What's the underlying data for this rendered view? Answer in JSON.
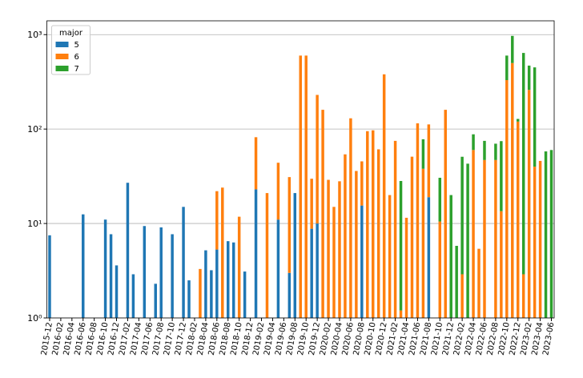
{
  "chart_data": {
    "type": "bar",
    "stacked": true,
    "log_y": true,
    "grid": true,
    "legend_loc": "upper left",
    "legend_title": "major",
    "categories": [
      "2015-12",
      null,
      "2016-02",
      null,
      "2016-04",
      null,
      "2016-06",
      null,
      "2016-08",
      null,
      "2016-10",
      null,
      "2016-12",
      null,
      "2017-02",
      null,
      "2017-04",
      null,
      "2017-06",
      null,
      "2017-08",
      null,
      "2017-10",
      null,
      "2017-12",
      null,
      "2018-02",
      null,
      "2018-04",
      null,
      "2018-06",
      null,
      "2018-08",
      null,
      "2018-10",
      null,
      "2018-12",
      null,
      "2019-02",
      null,
      "2019-04",
      null,
      "2019-06",
      null,
      "2019-08",
      null,
      "2019-10",
      null,
      "2019-12",
      null,
      "2020-02",
      null,
      "2020-04",
      null,
      "2020-06",
      null,
      "2020-08",
      null,
      "2020-10",
      null,
      "2020-12",
      null,
      "2021-02",
      null,
      "2021-04",
      null,
      "2021-06",
      null,
      "2021-08",
      null,
      "2021-10",
      null,
      "2021-12",
      null,
      "2022-02",
      null,
      "2022-04",
      null,
      "2022-06",
      null,
      "2022-08",
      null,
      "2022-10",
      null,
      "2022-12",
      null,
      "2023-02",
      null,
      "2023-04",
      null,
      "2023-06"
    ],
    "series": [
      {
        "name": "5",
        "color": "#1f77b4",
        "values": [
          7.5,
          null,
          null,
          null,
          null,
          null,
          12.5,
          null,
          null,
          null,
          11,
          7.7,
          3.6,
          null,
          27,
          2.9,
          null,
          9.4,
          null,
          2.3,
          9.1,
          null,
          7.7,
          null,
          15,
          2.5,
          null,
          null,
          5.2,
          3.2,
          5.3,
          null,
          6.5,
          6.3,
          null,
          3.1,
          null,
          23,
          null,
          null,
          null,
          11,
          null,
          3,
          21,
          null,
          null,
          8.8,
          10,
          null,
          null,
          null,
          null,
          null,
          null,
          null,
          15.5,
          null,
          null,
          null,
          null,
          null,
          null,
          null,
          null,
          null,
          null,
          null,
          19,
          null,
          null,
          null,
          null,
          null,
          null,
          null,
          null,
          null,
          null,
          null,
          null,
          null,
          null,
          null,
          null,
          null,
          null,
          null,
          null,
          null,
          null
        ]
      },
      {
        "name": "6",
        "color": "#ff7f0e",
        "values": [
          null,
          null,
          null,
          null,
          null,
          null,
          null,
          null,
          null,
          null,
          null,
          null,
          null,
          null,
          null,
          null,
          null,
          null,
          null,
          null,
          null,
          null,
          null,
          null,
          null,
          null,
          null,
          3.3,
          null,
          null,
          16.7,
          24,
          null,
          null,
          11.8,
          null,
          null,
          59,
          null,
          21,
          null,
          33,
          null,
          28,
          null,
          600,
          600,
          21,
          220,
          160,
          29,
          15,
          28,
          54,
          130,
          36,
          30,
          95,
          97,
          61,
          380,
          20,
          75,
          1.2,
          11.5,
          51,
          115,
          38,
          93,
          null,
          10.5,
          160,
          null,
          null,
          2.9,
          null,
          60,
          5.4,
          47,
          null,
          47,
          13.5,
          330,
          500,
          120,
          2.9,
          260,
          40,
          46,
          null,
          null
        ]
      },
      {
        "name": "7",
        "color": "#2ca02c",
        "values": [
          null,
          null,
          null,
          null,
          null,
          null,
          null,
          null,
          null,
          null,
          null,
          null,
          null,
          null,
          null,
          null,
          null,
          null,
          null,
          null,
          null,
          null,
          null,
          null,
          null,
          null,
          null,
          null,
          null,
          null,
          null,
          null,
          null,
          null,
          null,
          null,
          null,
          null,
          null,
          null,
          null,
          null,
          null,
          null,
          null,
          null,
          null,
          null,
          null,
          null,
          null,
          null,
          null,
          null,
          null,
          null,
          null,
          null,
          null,
          null,
          null,
          null,
          null,
          27,
          null,
          null,
          null,
          40,
          null,
          null,
          20,
          null,
          20,
          5.8,
          48,
          43,
          28,
          null,
          28,
          null,
          23,
          61,
          270,
          470,
          8,
          637,
          210,
          410,
          null,
          58,
          60
        ]
      }
    ],
    "ylim": [
      1,
      1400
    ],
    "yticks": [
      {
        "value": 1,
        "label": "10⁰"
      },
      {
        "value": 10,
        "label": "10¹"
      },
      {
        "value": 100,
        "label": "10²"
      },
      {
        "value": 1000,
        "label": "10³"
      }
    ]
  }
}
